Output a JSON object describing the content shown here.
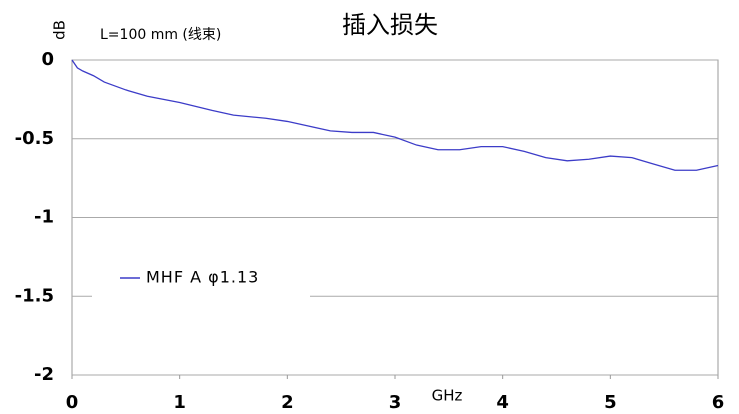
{
  "chart_data": {
    "type": "line",
    "title": "插入损失",
    "y_label": "dB",
    "x_label": "GHz",
    "annotation": "L=100 mm (线束)",
    "x": [
      0,
      0.05,
      0.1,
      0.2,
      0.3,
      0.5,
      0.7,
      1.0,
      1.3,
      1.5,
      1.8,
      2.0,
      2.2,
      2.4,
      2.6,
      2.8,
      3.0,
      3.2,
      3.4,
      3.6,
      3.8,
      4.0,
      4.2,
      4.4,
      4.6,
      4.8,
      5.0,
      5.2,
      5.4,
      5.6,
      5.8,
      6.0
    ],
    "series": [
      {
        "name": "MHF A φ1.13",
        "color": "#3c3cc8",
        "values": [
          0,
          -0.05,
          -0.07,
          -0.1,
          -0.14,
          -0.19,
          -0.23,
          -0.27,
          -0.32,
          -0.35,
          -0.37,
          -0.39,
          -0.42,
          -0.45,
          -0.46,
          -0.46,
          -0.49,
          -0.54,
          -0.57,
          -0.57,
          -0.55,
          -0.55,
          -0.58,
          -0.62,
          -0.64,
          -0.63,
          -0.61,
          -0.62,
          -0.66,
          -0.7,
          -0.7,
          -0.67
        ]
      }
    ],
    "xlim": [
      0,
      6
    ],
    "xticks": [
      0,
      1,
      2,
      3,
      4,
      5,
      6
    ],
    "ylim": [
      -2,
      0
    ],
    "yticks": [
      0,
      -0.5,
      -1,
      -1.5,
      -2
    ],
    "grid": true,
    "legend": "left"
  }
}
